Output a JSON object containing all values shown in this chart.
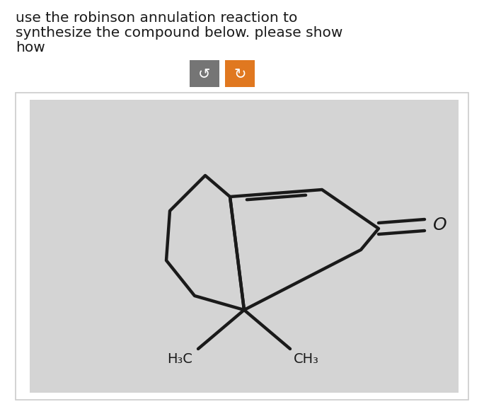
{
  "title_color": "#1a1a1a",
  "title_fontsize": 14.5,
  "fig_bg": "#ffffff",
  "btn1_color": "#757575",
  "btn2_color": "#e07820",
  "molecule_line_color": "#1a1a1a",
  "molecule_lw": 3.2,
  "h3c_label": "H₃C",
  "ch3_label": "CH₃",
  "o_label": "O",
  "inner_bg": "#d4d4d4",
  "outer_border": "#cccccc"
}
